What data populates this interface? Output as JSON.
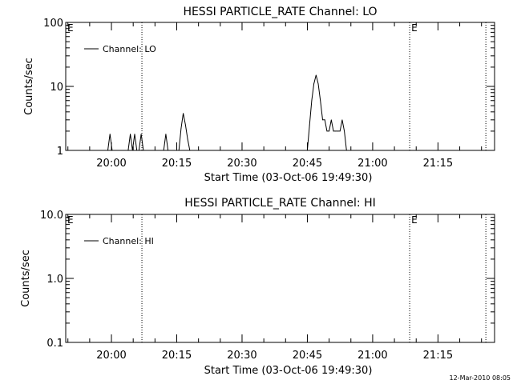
{
  "footer_timestamp": "12-Mar-2010 08:05",
  "chart_data": [
    {
      "type": "line",
      "title": "HESSI PARTICLE_RATE Channel: LO",
      "xlabel": "Start Time (03-Oct-06 19:49:30)",
      "ylabel": "Counts/sec",
      "y_scale": "log",
      "ylim": [
        1,
        100
      ],
      "xlim": [
        "19:49:30",
        "21:28:00"
      ],
      "y_tick_labels": [
        "1",
        "10",
        "100"
      ],
      "x_tick_labels": [
        "20:00",
        "20:15",
        "20:30",
        "20:45",
        "21:00",
        "21:15"
      ],
      "legend": {
        "position": "top-left",
        "entries": [
          "Channel: LO"
        ]
      },
      "annotations": [
        {
          "text": "E",
          "x": "19:49:30"
        },
        {
          "text": "E",
          "x": "21:08:30"
        }
      ],
      "vertical_lines": [
        "20:07:00",
        "21:08:30",
        "21:26:00"
      ],
      "series": [
        {
          "name": "Channel: LO",
          "x": [
            "19:59:10",
            "19:59:40",
            "20:00:10",
            "20:03:50",
            "20:04:20",
            "20:04:50",
            "20:05:20",
            "20:05:50",
            "20:06:20",
            "20:06:50",
            "20:07:20",
            "20:12:00",
            "20:12:30",
            "20:13:00",
            "20:15:30",
            "20:16:00",
            "20:16:30",
            "20:17:00",
            "20:17:30",
            "20:18:00",
            "20:18:30",
            "20:45:00",
            "20:45:30",
            "20:46:00",
            "20:46:30",
            "20:47:00",
            "20:47:30",
            "20:48:00",
            "20:48:30",
            "20:49:00",
            "20:49:30",
            "20:50:00",
            "20:50:30",
            "20:51:00",
            "20:51:30",
            "20:52:00",
            "20:52:30",
            "20:53:00",
            "20:53:30",
            "20:54:00",
            "20:54:30"
          ],
          "y": [
            1,
            1.8,
            1,
            1,
            1.8,
            1,
            1.8,
            1,
            1,
            1.8,
            1,
            1,
            1.8,
            1,
            1,
            2.2,
            3.8,
            2.5,
            1.5,
            1,
            1,
            1,
            2.5,
            6,
            11,
            15,
            11,
            6,
            3,
            3,
            2,
            2,
            3,
            2,
            2,
            2,
            2,
            3,
            2,
            1,
            1
          ]
        }
      ]
    },
    {
      "type": "line",
      "title": "HESSI PARTICLE_RATE Channel: HI",
      "xlabel": "Start Time (03-Oct-06 19:49:30)",
      "ylabel": "Counts/sec",
      "y_scale": "log",
      "ylim": [
        0.1,
        10
      ],
      "xlim": [
        "19:49:30",
        "21:28:00"
      ],
      "y_tick_labels": [
        "0.1",
        "1.0",
        "10.0"
      ],
      "x_tick_labels": [
        "20:00",
        "20:15",
        "20:30",
        "20:45",
        "21:00",
        "21:15"
      ],
      "legend": {
        "position": "top-left",
        "entries": [
          "Channel: HI"
        ]
      },
      "annotations": [
        {
          "text": "E",
          "x": "19:49:30"
        },
        {
          "text": "E",
          "x": "21:08:30"
        }
      ],
      "vertical_lines": [
        "20:07:00",
        "21:08:30",
        "21:26:00"
      ],
      "series": [
        {
          "name": "Channel: HI",
          "x": [],
          "y": []
        }
      ]
    }
  ]
}
